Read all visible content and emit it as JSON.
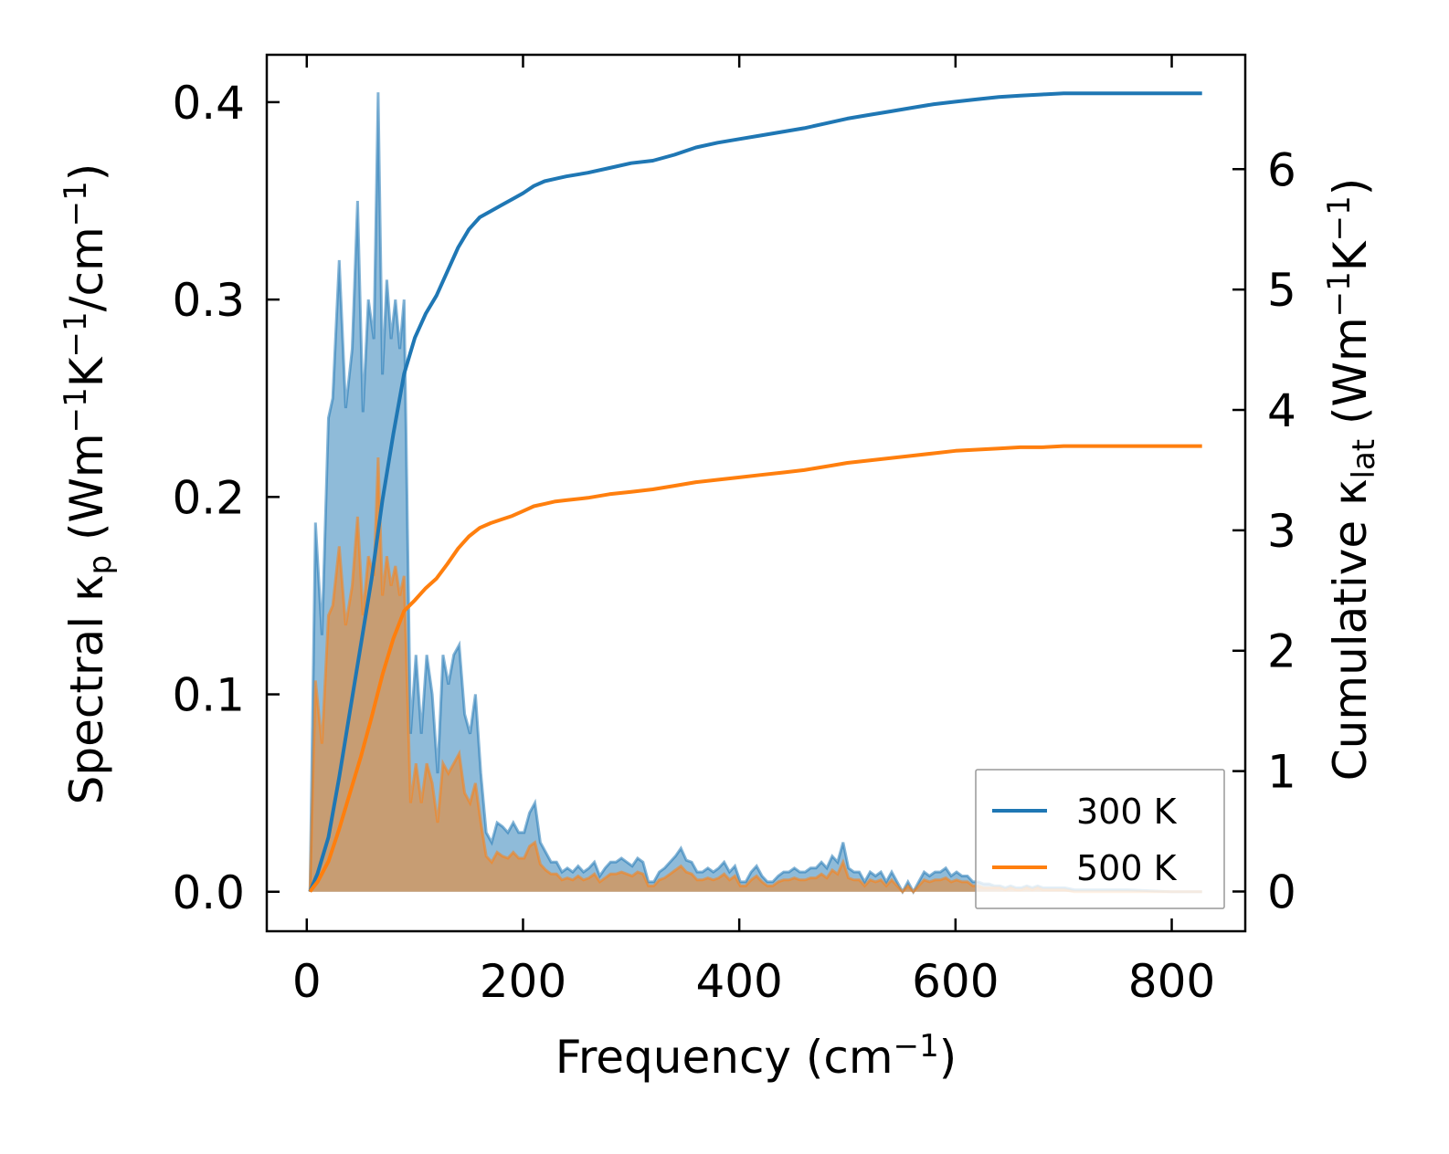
{
  "chart_data": {
    "type": "line",
    "xlabel": {
      "main": "Frequency (cm",
      "sup": "−1",
      "tail": ")"
    },
    "ylabel_left": {
      "parts": [
        {
          "t": "Spectral κ",
          "s": "n"
        },
        {
          "t": "p",
          "s": "sub"
        },
        {
          "t": " (Wm",
          "s": "n"
        },
        {
          "t": "−1",
          "s": "sup"
        },
        {
          "t": "K",
          "s": "n"
        },
        {
          "t": "−1",
          "s": "sup"
        },
        {
          "t": "/cm",
          "s": "n"
        },
        {
          "t": "−1",
          "s": "sup"
        },
        {
          "t": ")",
          "s": "n"
        }
      ]
    },
    "ylabel_right": {
      "parts": [
        {
          "t": "Cumulative κ",
          "s": "n"
        },
        {
          "t": "lat",
          "s": "sub"
        },
        {
          "t": " (Wm",
          "s": "n"
        },
        {
          "t": "−1",
          "s": "sup"
        },
        {
          "t": "K",
          "s": "n"
        },
        {
          "t": "−1",
          "s": "sup"
        },
        {
          "t": ")",
          "s": "n"
        }
      ]
    },
    "xlim": [
      -37,
      868
    ],
    "ylim_left": [
      -0.02,
      0.424
    ],
    "ylim_right": [
      -0.33,
      6.95
    ],
    "x_ticks": [
      0,
      200,
      400,
      600,
      800
    ],
    "x_tick_labels": [
      "0",
      "200",
      "400",
      "600",
      "800"
    ],
    "y_left_ticks": [
      0.0,
      0.1,
      0.2,
      0.3,
      0.4
    ],
    "y_left_tick_labels": [
      "0.0",
      "0.1",
      "0.2",
      "0.3",
      "0.4"
    ],
    "y_right_ticks": [
      0,
      1,
      2,
      3,
      4,
      5,
      6
    ],
    "y_right_tick_labels": [
      "0",
      "1",
      "2",
      "3",
      "4",
      "5",
      "6"
    ],
    "legend": {
      "position": "lower-right",
      "entries": [
        "300 K",
        "500 K"
      ]
    },
    "series": [
      {
        "name": "300 K",
        "color": "#1f77b4",
        "spectral": {
          "x": [
            3,
            8,
            14,
            20,
            24,
            30,
            36,
            42,
            47,
            52,
            57,
            62,
            66,
            70,
            74,
            78,
            82,
            86,
            90,
            96,
            101,
            106,
            111,
            116,
            121,
            126,
            131,
            136,
            141,
            146,
            151,
            156,
            161,
            166,
            171,
            176,
            181,
            186,
            191,
            196,
            201,
            206,
            211,
            216,
            221,
            226,
            231,
            236,
            241,
            246,
            251,
            256,
            261,
            266,
            271,
            276,
            281,
            286,
            291,
            296,
            301,
            306,
            311,
            316,
            321,
            326,
            331,
            336,
            341,
            346,
            351,
            356,
            361,
            366,
            371,
            376,
            381,
            386,
            391,
            396,
            401,
            406,
            411,
            416,
            421,
            426,
            431,
            436,
            441,
            446,
            451,
            456,
            461,
            466,
            471,
            476,
            481,
            486,
            491,
            496,
            501,
            506,
            511,
            516,
            521,
            526,
            531,
            536,
            541,
            546,
            551,
            556,
            561,
            566,
            571,
            576,
            581,
            586,
            591,
            596,
            601,
            606,
            611,
            616,
            621,
            626,
            631,
            636,
            641,
            646,
            651,
            656,
            661,
            666,
            671,
            676,
            681,
            686,
            691,
            696,
            701,
            710,
            730,
            760,
            800,
            828
          ],
          "values": [
            0.0,
            0.187,
            0.13,
            0.24,
            0.25,
            0.32,
            0.245,
            0.275,
            0.35,
            0.243,
            0.3,
            0.28,
            0.405,
            0.262,
            0.31,
            0.28,
            0.3,
            0.275,
            0.3,
            0.08,
            0.12,
            0.08,
            0.12,
            0.1,
            0.06,
            0.12,
            0.105,
            0.12,
            0.125,
            0.09,
            0.08,
            0.1,
            0.06,
            0.03,
            0.025,
            0.035,
            0.033,
            0.03,
            0.035,
            0.03,
            0.03,
            0.04,
            0.045,
            0.025,
            0.02,
            0.015,
            0.015,
            0.01,
            0.012,
            0.01,
            0.013,
            0.01,
            0.012,
            0.015,
            0.008,
            0.012,
            0.015,
            0.015,
            0.017,
            0.015,
            0.013,
            0.017,
            0.015,
            0.005,
            0.005,
            0.01,
            0.012,
            0.015,
            0.018,
            0.022,
            0.016,
            0.015,
            0.01,
            0.01,
            0.012,
            0.01,
            0.012,
            0.015,
            0.01,
            0.013,
            0.005,
            0.005,
            0.01,
            0.013,
            0.008,
            0.005,
            0.005,
            0.008,
            0.01,
            0.01,
            0.012,
            0.01,
            0.01,
            0.012,
            0.012,
            0.015,
            0.012,
            0.018,
            0.015,
            0.025,
            0.012,
            0.01,
            0.01,
            0.005,
            0.01,
            0.008,
            0.01,
            0.005,
            0.01,
            0.005,
            0.0,
            0.005,
            0.0,
            0.005,
            0.01,
            0.008,
            0.01,
            0.01,
            0.012,
            0.008,
            0.01,
            0.008,
            0.008,
            0.005,
            0.005,
            0.004,
            0.004,
            0.003,
            0.003,
            0.002,
            0.003,
            0.002,
            0.002,
            0.003,
            0.002,
            0.003,
            0.002,
            0.002,
            0.002,
            0.002,
            0.002,
            0.001,
            0.001,
            0.001,
            0.0,
            0.0
          ]
        },
        "cumulative": {
          "x": [
            3,
            10,
            20,
            30,
            40,
            50,
            60,
            70,
            80,
            90,
            100,
            110,
            120,
            130,
            140,
            150,
            160,
            170,
            180,
            190,
            200,
            210,
            220,
            230,
            240,
            260,
            280,
            300,
            320,
            340,
            360,
            380,
            400,
            420,
            440,
            460,
            480,
            500,
            520,
            540,
            560,
            580,
            600,
            620,
            640,
            660,
            680,
            700,
            720,
            740,
            760,
            800,
            828
          ],
          "values": [
            0.0,
            0.15,
            0.45,
            0.95,
            1.5,
            2.05,
            2.6,
            3.25,
            3.8,
            4.3,
            4.6,
            4.8,
            4.95,
            5.15,
            5.35,
            5.5,
            5.6,
            5.65,
            5.7,
            5.75,
            5.8,
            5.86,
            5.9,
            5.92,
            5.94,
            5.97,
            6.01,
            6.05,
            6.07,
            6.12,
            6.18,
            6.22,
            6.25,
            6.28,
            6.31,
            6.34,
            6.38,
            6.42,
            6.45,
            6.48,
            6.51,
            6.54,
            6.56,
            6.58,
            6.6,
            6.61,
            6.62,
            6.63,
            6.63,
            6.63,
            6.63,
            6.63,
            6.63
          ]
        }
      },
      {
        "name": "500 K",
        "color": "#ff7f0e",
        "spectral": {
          "x": [
            3,
            8,
            14,
            20,
            24,
            30,
            36,
            42,
            47,
            52,
            57,
            62,
            66,
            70,
            74,
            78,
            82,
            86,
            90,
            96,
            101,
            106,
            111,
            116,
            121,
            126,
            131,
            136,
            141,
            146,
            151,
            156,
            161,
            166,
            171,
            176,
            181,
            186,
            191,
            196,
            201,
            206,
            211,
            216,
            221,
            226,
            231,
            236,
            241,
            246,
            251,
            256,
            261,
            266,
            271,
            276,
            281,
            286,
            291,
            296,
            301,
            306,
            311,
            316,
            321,
            326,
            331,
            336,
            341,
            346,
            351,
            356,
            361,
            366,
            371,
            376,
            381,
            386,
            391,
            396,
            401,
            406,
            411,
            416,
            421,
            426,
            431,
            436,
            441,
            446,
            451,
            456,
            461,
            466,
            471,
            476,
            481,
            486,
            491,
            496,
            501,
            506,
            511,
            516,
            521,
            526,
            531,
            536,
            541,
            546,
            551,
            556,
            561,
            566,
            571,
            576,
            581,
            586,
            591,
            596,
            601,
            606,
            611,
            616,
            621,
            626,
            631,
            636,
            641,
            646,
            651,
            656,
            661,
            666,
            671,
            676,
            681,
            686,
            691,
            696,
            701,
            710,
            730,
            760,
            800,
            828
          ],
          "values": [
            0.0,
            0.107,
            0.075,
            0.14,
            0.145,
            0.175,
            0.135,
            0.155,
            0.19,
            0.14,
            0.17,
            0.16,
            0.22,
            0.15,
            0.17,
            0.155,
            0.165,
            0.15,
            0.16,
            0.045,
            0.065,
            0.045,
            0.065,
            0.055,
            0.035,
            0.065,
            0.06,
            0.065,
            0.07,
            0.05,
            0.045,
            0.055,
            0.035,
            0.018,
            0.015,
            0.02,
            0.018,
            0.017,
            0.02,
            0.017,
            0.017,
            0.023,
            0.025,
            0.014,
            0.011,
            0.009,
            0.009,
            0.006,
            0.007,
            0.006,
            0.008,
            0.006,
            0.007,
            0.009,
            0.005,
            0.007,
            0.009,
            0.009,
            0.01,
            0.009,
            0.008,
            0.01,
            0.009,
            0.003,
            0.003,
            0.006,
            0.007,
            0.009,
            0.011,
            0.013,
            0.01,
            0.009,
            0.006,
            0.006,
            0.007,
            0.006,
            0.007,
            0.009,
            0.006,
            0.008,
            0.003,
            0.003,
            0.006,
            0.008,
            0.005,
            0.003,
            0.003,
            0.005,
            0.006,
            0.006,
            0.007,
            0.006,
            0.006,
            0.007,
            0.007,
            0.009,
            0.007,
            0.011,
            0.009,
            0.015,
            0.007,
            0.006,
            0.006,
            0.003,
            0.006,
            0.005,
            0.006,
            0.003,
            0.006,
            0.003,
            0.0,
            0.003,
            0.0,
            0.003,
            0.006,
            0.005,
            0.006,
            0.006,
            0.007,
            0.005,
            0.006,
            0.005,
            0.005,
            0.003,
            0.003,
            0.002,
            0.002,
            0.002,
            0.002,
            0.001,
            0.002,
            0.001,
            0.001,
            0.002,
            0.001,
            0.002,
            0.001,
            0.001,
            0.001,
            0.001,
            0.001,
            0.0,
            0.0,
            0.0,
            0.0,
            0.0
          ]
        },
        "cumulative": {
          "x": [
            3,
            10,
            20,
            30,
            40,
            50,
            60,
            70,
            80,
            90,
            100,
            110,
            120,
            130,
            140,
            150,
            160,
            170,
            180,
            190,
            200,
            210,
            220,
            230,
            240,
            260,
            280,
            300,
            320,
            340,
            360,
            380,
            400,
            420,
            440,
            460,
            480,
            500,
            520,
            540,
            560,
            580,
            600,
            620,
            640,
            660,
            680,
            700,
            720,
            740,
            760,
            800,
            828
          ],
          "values": [
            0.0,
            0.08,
            0.25,
            0.52,
            0.82,
            1.12,
            1.45,
            1.8,
            2.1,
            2.33,
            2.42,
            2.52,
            2.6,
            2.72,
            2.85,
            2.95,
            3.02,
            3.06,
            3.09,
            3.12,
            3.16,
            3.2,
            3.22,
            3.24,
            3.25,
            3.27,
            3.3,
            3.32,
            3.34,
            3.37,
            3.4,
            3.42,
            3.44,
            3.46,
            3.48,
            3.5,
            3.53,
            3.56,
            3.58,
            3.6,
            3.62,
            3.64,
            3.66,
            3.67,
            3.68,
            3.69,
            3.69,
            3.7,
            3.7,
            3.7,
            3.7,
            3.7,
            3.7
          ]
        }
      }
    ]
  }
}
